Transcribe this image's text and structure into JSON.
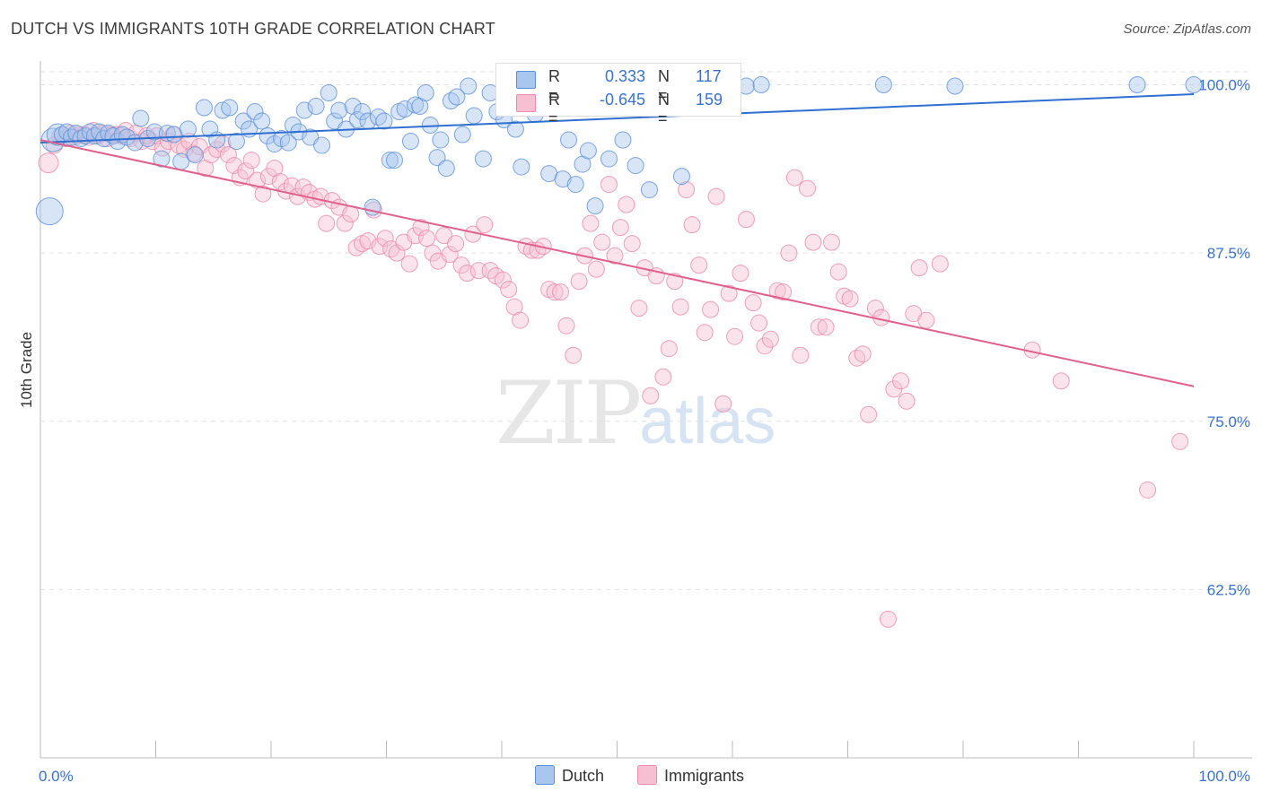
{
  "header": {
    "title": "DUTCH VS IMMIGRANTS 10TH GRADE CORRELATION CHART",
    "source": "Source: ZipAtlas.com"
  },
  "watermark": {
    "zip": "ZIP",
    "atlas": "atlas"
  },
  "legend": {
    "dutch": {
      "r_label": "R =",
      "r_value": "0.333",
      "n_label": "N =",
      "n_value": "117"
    },
    "immigrants": {
      "r_label": "R =",
      "r_value": "-0.645",
      "n_label": "N =",
      "n_value": "159"
    }
  },
  "bottom_legend": {
    "dutch": "Dutch",
    "immigrants": "Immigrants"
  },
  "colors": {
    "dutch_fill": "#a9c6ee",
    "dutch_stroke": "#5d90d6",
    "dutch_line": "#2f6fd0",
    "imm_fill": "#f6c0d2",
    "imm_stroke": "#e88aa8",
    "imm_line": "#e0608c",
    "tick_text": "#3a72c9",
    "grid": "#e2e2e2"
  },
  "chart_data": {
    "type": "scatter",
    "title": "DUTCH VS IMMIGRANTS 10TH GRADE CORRELATION CHART",
    "xlabel": "",
    "ylabel": "10th Grade",
    "xlim": [
      0,
      100
    ],
    "ylim": [
      50.0,
      101.5
    ],
    "x_tick_labels": [
      "0.0%",
      "100.0%"
    ],
    "y_ticks": [
      100.0,
      87.5,
      75.0,
      62.5
    ],
    "y_tick_labels": [
      "100.0%",
      "87.5%",
      "75.0%",
      "62.5%"
    ],
    "grid": true,
    "legend_position": "top-center",
    "series": [
      {
        "name": "Dutch",
        "R": 0.333,
        "N": 117,
        "trend": {
          "x": [
            0,
            100
          ],
          "y": [
            95.7,
            99.3
          ]
        },
        "points": [
          [
            0.8,
            90.6
          ],
          [
            1.1,
            95.9
          ],
          [
            1.5,
            96.3
          ],
          [
            1.9,
            96.3
          ],
          [
            2.3,
            96.5
          ],
          [
            2.7,
            96.1
          ],
          [
            3.1,
            96.4
          ],
          [
            3.5,
            96.0
          ],
          [
            3.9,
            96.2
          ],
          [
            4.3,
            96.5
          ],
          [
            4.7,
            96.2
          ],
          [
            5.1,
            96.5
          ],
          [
            5.5,
            96.0
          ],
          [
            5.9,
            96.4
          ],
          [
            6.3,
            96.2
          ],
          [
            6.7,
            95.8
          ],
          [
            7.1,
            96.3
          ],
          [
            7.5,
            96.1
          ],
          [
            8.2,
            95.7
          ],
          [
            8.7,
            97.5
          ],
          [
            9.3,
            96.0
          ],
          [
            9.9,
            96.5
          ],
          [
            10.5,
            94.5
          ],
          [
            11.0,
            96.4
          ],
          [
            11.6,
            96.3
          ],
          [
            12.2,
            94.3
          ],
          [
            12.8,
            96.7
          ],
          [
            13.4,
            94.8
          ],
          [
            14.2,
            98.3
          ],
          [
            14.7,
            96.7
          ],
          [
            15.3,
            95.9
          ],
          [
            15.8,
            98.1
          ],
          [
            16.4,
            98.3
          ],
          [
            17.0,
            95.8
          ],
          [
            17.6,
            97.3
          ],
          [
            18.1,
            96.7
          ],
          [
            18.6,
            98.0
          ],
          [
            19.2,
            97.3
          ],
          [
            19.7,
            96.2
          ],
          [
            20.3,
            95.6
          ],
          [
            20.9,
            96.0
          ],
          [
            21.5,
            95.7
          ],
          [
            21.9,
            97.0
          ],
          [
            22.4,
            96.5
          ],
          [
            22.9,
            98.1
          ],
          [
            23.4,
            96.1
          ],
          [
            23.9,
            98.4
          ],
          [
            24.4,
            95.5
          ],
          [
            25.0,
            99.4
          ],
          [
            25.5,
            97.3
          ],
          [
            25.9,
            98.1
          ],
          [
            26.5,
            96.7
          ],
          [
            27.1,
            98.4
          ],
          [
            27.5,
            97.4
          ],
          [
            27.9,
            98.0
          ],
          [
            28.4,
            97.3
          ],
          [
            28.8,
            90.9
          ],
          [
            29.3,
            97.6
          ],
          [
            29.8,
            97.3
          ],
          [
            30.3,
            94.4
          ],
          [
            30.7,
            94.4
          ],
          [
            31.1,
            98.0
          ],
          [
            31.6,
            98.2
          ],
          [
            32.1,
            95.8
          ],
          [
            32.5,
            98.5
          ],
          [
            32.9,
            98.4
          ],
          [
            33.4,
            99.4
          ],
          [
            33.8,
            97.0
          ],
          [
            34.4,
            94.6
          ],
          [
            34.7,
            95.9
          ],
          [
            35.2,
            93.8
          ],
          [
            35.6,
            98.8
          ],
          [
            36.1,
            99.1
          ],
          [
            36.6,
            96.3
          ],
          [
            37.1,
            99.9
          ],
          [
            37.6,
            97.7
          ],
          [
            38.4,
            94.5
          ],
          [
            39.0,
            99.4
          ],
          [
            39.6,
            98.0
          ],
          [
            40.2,
            97.4
          ],
          [
            40.7,
            99.0
          ],
          [
            41.2,
            96.7
          ],
          [
            41.7,
            93.9
          ],
          [
            42.3,
            99.8
          ],
          [
            42.9,
            97.8
          ],
          [
            43.5,
            99.8
          ],
          [
            44.1,
            93.4
          ],
          [
            44.7,
            99.7
          ],
          [
            45.3,
            93.0
          ],
          [
            45.8,
            95.9
          ],
          [
            46.4,
            92.6
          ],
          [
            47.0,
            94.1
          ],
          [
            47.5,
            95.1
          ],
          [
            48.1,
            91.0
          ],
          [
            48.7,
            99.6
          ],
          [
            49.3,
            94.5
          ],
          [
            49.9,
            99.9
          ],
          [
            50.5,
            95.9
          ],
          [
            51.1,
            99.7
          ],
          [
            51.6,
            94.0
          ],
          [
            52.2,
            99.3
          ],
          [
            52.8,
            92.2
          ],
          [
            53.4,
            99.7
          ],
          [
            54.8,
            99.3
          ],
          [
            55.6,
            93.2
          ],
          [
            56.2,
            99.8
          ],
          [
            61.2,
            99.9
          ],
          [
            62.5,
            100.0
          ],
          [
            73.1,
            100.0
          ],
          [
            79.3,
            99.9
          ],
          [
            95.1,
            100.0
          ],
          [
            100.0,
            100.0
          ]
        ]
      },
      {
        "name": "Immigrants",
        "R": -0.645,
        "N": 159,
        "trend": {
          "x": [
            0,
            100
          ],
          "y": [
            95.9,
            77.6
          ]
        },
        "points": [
          [
            0.7,
            94.2
          ],
          [
            1.2,
            95.5
          ],
          [
            1.7,
            96.2
          ],
          [
            2.2,
            96.0
          ],
          [
            2.6,
            96.4
          ],
          [
            3.0,
            96.1
          ],
          [
            3.4,
            96.3
          ],
          [
            3.8,
            96.3
          ],
          [
            4.2,
            96.1
          ],
          [
            4.6,
            96.6
          ],
          [
            5.0,
            96.2
          ],
          [
            5.4,
            96.4
          ],
          [
            5.8,
            96.0
          ],
          [
            6.2,
            96.3
          ],
          [
            6.6,
            96.3
          ],
          [
            7.0,
            96.2
          ],
          [
            7.4,
            96.6
          ],
          [
            7.8,
            96.0
          ],
          [
            8.3,
            96.4
          ],
          [
            8.8,
            95.8
          ],
          [
            9.2,
            96.2
          ],
          [
            9.7,
            95.8
          ],
          [
            10.1,
            96.2
          ],
          [
            10.6,
            95.3
          ],
          [
            11.1,
            95.8
          ],
          [
            11.5,
            96.3
          ],
          [
            12.0,
            95.5
          ],
          [
            12.5,
            95.2
          ],
          [
            12.9,
            95.8
          ],
          [
            13.3,
            94.9
          ],
          [
            13.8,
            95.4
          ],
          [
            14.3,
            93.8
          ],
          [
            14.8,
            94.8
          ],
          [
            15.3,
            95.2
          ],
          [
            15.8,
            95.6
          ],
          [
            16.3,
            94.8
          ],
          [
            16.8,
            94.0
          ],
          [
            17.3,
            93.1
          ],
          [
            17.8,
            93.6
          ],
          [
            18.3,
            94.4
          ],
          [
            18.8,
            92.9
          ],
          [
            19.3,
            91.9
          ],
          [
            19.8,
            93.2
          ],
          [
            20.3,
            93.8
          ],
          [
            20.8,
            92.8
          ],
          [
            21.3,
            92.1
          ],
          [
            21.8,
            92.5
          ],
          [
            22.3,
            91.7
          ],
          [
            22.8,
            92.4
          ],
          [
            23.3,
            92.0
          ],
          [
            23.8,
            91.5
          ],
          [
            24.3,
            91.7
          ],
          [
            24.8,
            89.7
          ],
          [
            25.3,
            91.4
          ],
          [
            25.9,
            90.9
          ],
          [
            26.4,
            89.7
          ],
          [
            26.9,
            90.4
          ],
          [
            27.4,
            87.9
          ],
          [
            27.9,
            88.2
          ],
          [
            28.4,
            88.4
          ],
          [
            28.9,
            90.7
          ],
          [
            29.4,
            88.0
          ],
          [
            29.9,
            88.6
          ],
          [
            30.4,
            87.8
          ],
          [
            30.9,
            87.5
          ],
          [
            31.5,
            88.3
          ],
          [
            32.0,
            86.7
          ],
          [
            32.5,
            88.8
          ],
          [
            33.0,
            89.4
          ],
          [
            33.5,
            88.6
          ],
          [
            34.0,
            87.5
          ],
          [
            34.5,
            86.9
          ],
          [
            35.0,
            88.8
          ],
          [
            35.5,
            87.4
          ],
          [
            36.0,
            88.2
          ],
          [
            36.5,
            86.6
          ],
          [
            37.0,
            86.0
          ],
          [
            37.5,
            88.9
          ],
          [
            38.0,
            86.2
          ],
          [
            38.5,
            89.6
          ],
          [
            39.0,
            86.2
          ],
          [
            39.5,
            85.8
          ],
          [
            40.1,
            85.5
          ],
          [
            40.6,
            84.8
          ],
          [
            41.1,
            83.5
          ],
          [
            41.6,
            82.5
          ],
          [
            42.1,
            88.0
          ],
          [
            42.6,
            87.7
          ],
          [
            43.1,
            87.7
          ],
          [
            43.6,
            88.0
          ],
          [
            44.1,
            84.8
          ],
          [
            44.6,
            84.6
          ],
          [
            45.1,
            84.6
          ],
          [
            45.6,
            82.1
          ],
          [
            46.2,
            79.9
          ],
          [
            46.7,
            85.4
          ],
          [
            47.2,
            87.3
          ],
          [
            47.7,
            89.7
          ],
          [
            48.2,
            86.3
          ],
          [
            48.7,
            88.3
          ],
          [
            49.3,
            92.6
          ],
          [
            49.8,
            87.3
          ],
          [
            50.3,
            89.4
          ],
          [
            50.8,
            91.1
          ],
          [
            51.3,
            88.2
          ],
          [
            51.9,
            83.4
          ],
          [
            52.4,
            86.4
          ],
          [
            52.9,
            76.9
          ],
          [
            53.4,
            85.8
          ],
          [
            54.0,
            78.3
          ],
          [
            54.5,
            80.4
          ],
          [
            55.0,
            85.4
          ],
          [
            55.5,
            83.5
          ],
          [
            56.0,
            92.2
          ],
          [
            56.5,
            89.6
          ],
          [
            57.1,
            86.6
          ],
          [
            57.6,
            81.6
          ],
          [
            58.1,
            83.3
          ],
          [
            58.6,
            91.7
          ],
          [
            59.2,
            76.3
          ],
          [
            59.7,
            84.5
          ],
          [
            60.2,
            81.3
          ],
          [
            60.7,
            86.0
          ],
          [
            61.2,
            90.0
          ],
          [
            61.8,
            83.8
          ],
          [
            62.3,
            82.3
          ],
          [
            62.8,
            80.6
          ],
          [
            63.3,
            81.1
          ],
          [
            63.9,
            84.7
          ],
          [
            64.4,
            84.6
          ],
          [
            64.9,
            87.5
          ],
          [
            65.4,
            93.1
          ],
          [
            65.9,
            79.9
          ],
          [
            66.5,
            92.3
          ],
          [
            67.0,
            88.3
          ],
          [
            67.5,
            82.0
          ],
          [
            68.1,
            82.0
          ],
          [
            68.6,
            88.3
          ],
          [
            69.2,
            86.1
          ],
          [
            69.7,
            84.3
          ],
          [
            70.2,
            84.1
          ],
          [
            70.8,
            79.7
          ],
          [
            71.3,
            80.0
          ],
          [
            71.8,
            75.5
          ],
          [
            72.4,
            83.4
          ],
          [
            72.9,
            82.7
          ],
          [
            73.5,
            60.3
          ],
          [
            74.0,
            77.4
          ],
          [
            74.6,
            78.0
          ],
          [
            75.1,
            76.5
          ],
          [
            75.7,
            83.0
          ],
          [
            76.2,
            86.4
          ],
          [
            76.8,
            82.5
          ],
          [
            78.0,
            86.7
          ],
          [
            86.0,
            80.3
          ],
          [
            88.5,
            78.0
          ],
          [
            96.0,
            69.9
          ],
          [
            98.8,
            73.5
          ]
        ]
      }
    ]
  }
}
